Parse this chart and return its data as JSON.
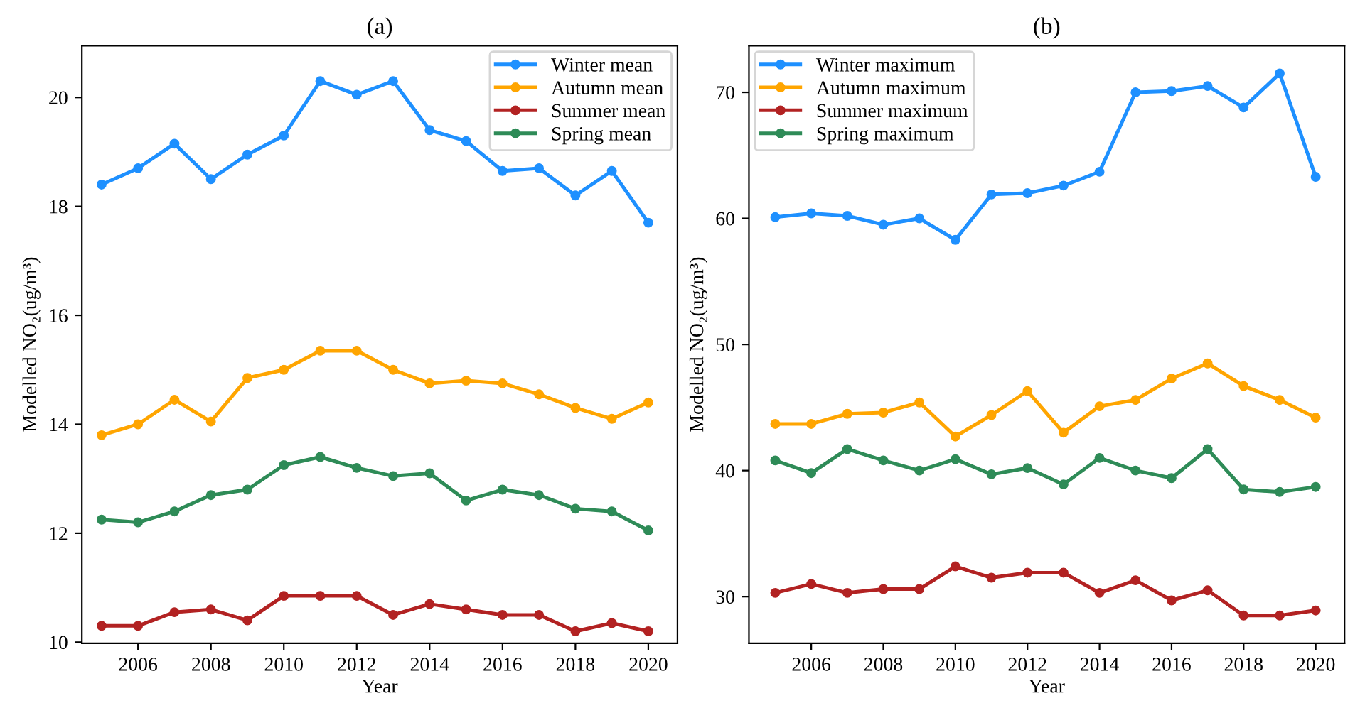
{
  "chart_data": [
    {
      "type": "line",
      "title": "(a)",
      "xlabel": "Year",
      "ylabel": "Modelled NO₂(ug/m³)",
      "marker": "circle",
      "line_style": "solid",
      "legend": "top right",
      "grid": false,
      "x": [
        2005,
        2006,
        2007,
        2008,
        2009,
        2010,
        2011,
        2012,
        2013,
        2014,
        2015,
        2016,
        2017,
        2018,
        2019,
        2020
      ],
      "xlim": [
        2004.46,
        2020.8
      ],
      "xticks": [
        2006,
        2008,
        2010,
        2012,
        2014,
        2016,
        2018,
        2020
      ],
      "ylim": [
        9.98,
        20.95
      ],
      "yticks": [
        10,
        12,
        14,
        16,
        18,
        20
      ],
      "series": [
        {
          "name": "Winter mean",
          "color": "#1e90ff",
          "values": [
            18.4,
            18.7,
            19.15,
            18.5,
            18.95,
            19.3,
            20.3,
            20.05,
            20.3,
            19.4,
            19.2,
            18.65,
            18.7,
            18.2,
            18.65,
            17.7
          ]
        },
        {
          "name": "Autumn mean",
          "color": "#ffa500",
          "values": [
            13.8,
            14.0,
            14.45,
            14.05,
            14.85,
            15.0,
            15.35,
            15.35,
            15.0,
            14.75,
            14.8,
            14.75,
            14.55,
            14.3,
            14.1,
            14.4
          ]
        },
        {
          "name": "Summer mean",
          "color": "#b22222",
          "values": [
            10.3,
            10.3,
            10.55,
            10.6,
            10.4,
            10.85,
            10.85,
            10.85,
            10.5,
            10.7,
            10.6,
            10.5,
            10.5,
            10.2,
            10.35,
            10.2
          ]
        },
        {
          "name": "Spring mean",
          "color": "#2e8b57",
          "values": [
            12.25,
            12.2,
            12.4,
            12.7,
            12.8,
            13.25,
            13.4,
            13.2,
            13.05,
            13.1,
            12.6,
            12.8,
            12.7,
            12.45,
            12.4,
            12.05
          ]
        }
      ]
    },
    {
      "type": "line",
      "title": "(b)",
      "xlabel": "Year",
      "ylabel": "Modelled NO₂(ug/m³)",
      "marker": "circle",
      "line_style": "solid",
      "legend": "top left",
      "grid": false,
      "x": [
        2005,
        2006,
        2007,
        2008,
        2009,
        2010,
        2011,
        2012,
        2013,
        2014,
        2015,
        2016,
        2017,
        2018,
        2019,
        2020
      ],
      "xlim": [
        2004.27,
        2020.8
      ],
      "xticks": [
        2006,
        2008,
        2010,
        2012,
        2014,
        2016,
        2018,
        2020
      ],
      "ylim": [
        26.3,
        73.7
      ],
      "yticks": [
        30,
        40,
        50,
        60,
        70
      ],
      "series": [
        {
          "name": "Winter maximum",
          "color": "#1e90ff",
          "values": [
            60.1,
            60.4,
            60.2,
            59.5,
            60.0,
            58.3,
            61.9,
            62.0,
            62.6,
            63.7,
            70.0,
            70.1,
            70.5,
            68.8,
            71.5,
            63.3
          ]
        },
        {
          "name": "Autumn maximum",
          "color": "#ffa500",
          "values": [
            43.7,
            43.7,
            44.5,
            44.6,
            45.4,
            42.7,
            44.4,
            46.3,
            43.0,
            45.1,
            45.6,
            47.3,
            48.5,
            46.7,
            45.6,
            44.2
          ]
        },
        {
          "name": "Summer maximum",
          "color": "#b22222",
          "values": [
            30.3,
            31.0,
            30.3,
            30.6,
            30.6,
            32.4,
            31.5,
            31.9,
            31.9,
            30.3,
            31.3,
            29.7,
            30.5,
            28.5,
            28.5,
            28.9
          ]
        },
        {
          "name": "Spring maximum",
          "color": "#2e8b57",
          "values": [
            40.8,
            39.8,
            41.7,
            40.8,
            40.0,
            40.9,
            39.7,
            40.2,
            38.9,
            41.0,
            40.0,
            39.4,
            41.7,
            38.5,
            38.3,
            38.7
          ]
        }
      ]
    }
  ]
}
